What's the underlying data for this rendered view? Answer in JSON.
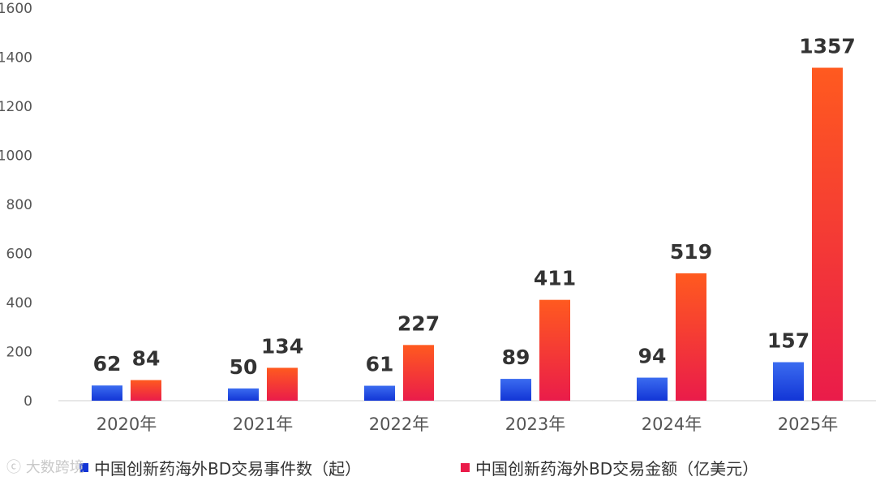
{
  "watermark": "大数跨境",
  "chart_data": {
    "type": "bar",
    "categories": [
      "2020年",
      "2021年",
      "2022年",
      "2023年",
      "2024年",
      "2025年"
    ],
    "series": [
      {
        "name": "中国创新药海外BD交易事件数（起）",
        "values": [
          62,
          50,
          61,
          89,
          94,
          157
        ],
        "color_top": "#3b6cf0",
        "color_bottom": "#1235d6"
      },
      {
        "name": "中国创新药海外BD交易金额（亿美元）",
        "values": [
          84,
          134,
          227,
          411,
          519,
          1357
        ],
        "color_top": "#ff5a1f",
        "color_bottom": "#ea1c4a"
      }
    ],
    "data_labels": [
      [
        "62",
        "50",
        "61",
        "89",
        "94",
        "157"
      ],
      [
        "84",
        "134",
        "227",
        "411",
        "519",
        "1357"
      ]
    ],
    "ylim": [
      0,
      1600
    ],
    "yticks": [
      "0",
      "200",
      "400",
      "600",
      "800",
      "1000",
      "1200",
      "1400",
      "1600"
    ],
    "grid": false,
    "legend_position": "bottom",
    "title": "",
    "xlabel": "",
    "ylabel": ""
  }
}
